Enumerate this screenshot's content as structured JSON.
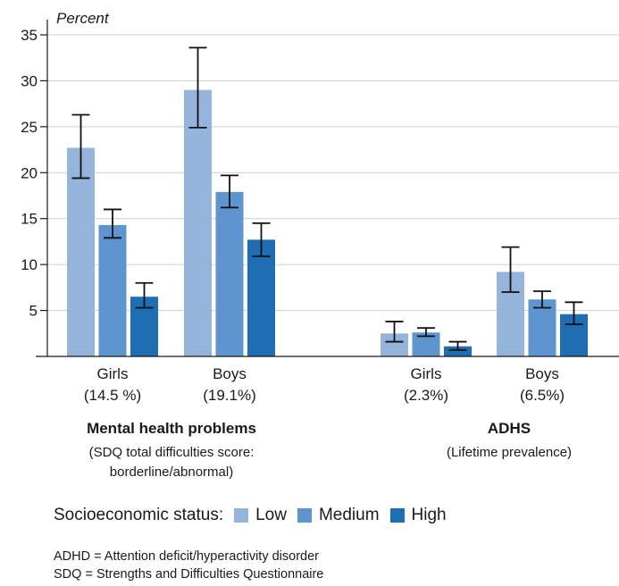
{
  "chart_data": {
    "type": "bar",
    "ylabel": "Percent",
    "ylim": [
      0,
      35
    ],
    "yticks": [
      5,
      10,
      15,
      20,
      25,
      30,
      35
    ],
    "grid": "horizontal",
    "series_order": [
      "Low",
      "Medium",
      "High"
    ],
    "colors": {
      "Low": "#94b4dc",
      "Medium": "#5e95cf",
      "High": "#1f6db3"
    },
    "groups": [
      {
        "title": "Mental health problems",
        "subtitle": [
          "(SDQ total difficulties score:",
          "borderline/abnormal)"
        ],
        "categories": [
          {
            "label": "Girls",
            "sublabel": "(14.5 %)",
            "values": [
              22.7,
              14.3,
              6.5
            ],
            "errors": [
              [
                19.4,
                26.3
              ],
              [
                12.9,
                16.0
              ],
              [
                5.3,
                8.0
              ]
            ]
          },
          {
            "label": "Boys",
            "sublabel": "(19.1%)",
            "values": [
              29.0,
              17.9,
              12.7
            ],
            "errors": [
              [
                24.9,
                33.6
              ],
              [
                16.2,
                19.7
              ],
              [
                10.9,
                14.5
              ]
            ]
          }
        ]
      },
      {
        "title": "ADHS",
        "subtitle": [
          "(Lifetime prevalence)"
        ],
        "categories": [
          {
            "label": "Girls",
            "sublabel": "(2.3%)",
            "values": [
              2.5,
              2.6,
              1.1
            ],
            "errors": [
              [
                1.6,
                3.8
              ],
              [
                2.2,
                3.1
              ],
              [
                0.7,
                1.6
              ]
            ]
          },
          {
            "label": "Boys",
            "sublabel": "(6.5%)",
            "values": [
              9.2,
              6.2,
              4.6
            ],
            "errors": [
              [
                7.0,
                11.9
              ],
              [
                5.3,
                7.1
              ],
              [
                3.5,
                5.9
              ]
            ]
          }
        ]
      }
    ]
  },
  "legend": {
    "title": "Socioeconomic status:",
    "items": [
      {
        "label": "Low",
        "color": "#94b4dc"
      },
      {
        "label": "Medium",
        "color": "#5e95cf"
      },
      {
        "label": "High",
        "color": "#1f6db3"
      }
    ]
  },
  "notes": [
    "ADHD = Attention deficit/hyperactivity disorder",
    "SDQ = Strengths and Difficulties Questionnaire"
  ]
}
